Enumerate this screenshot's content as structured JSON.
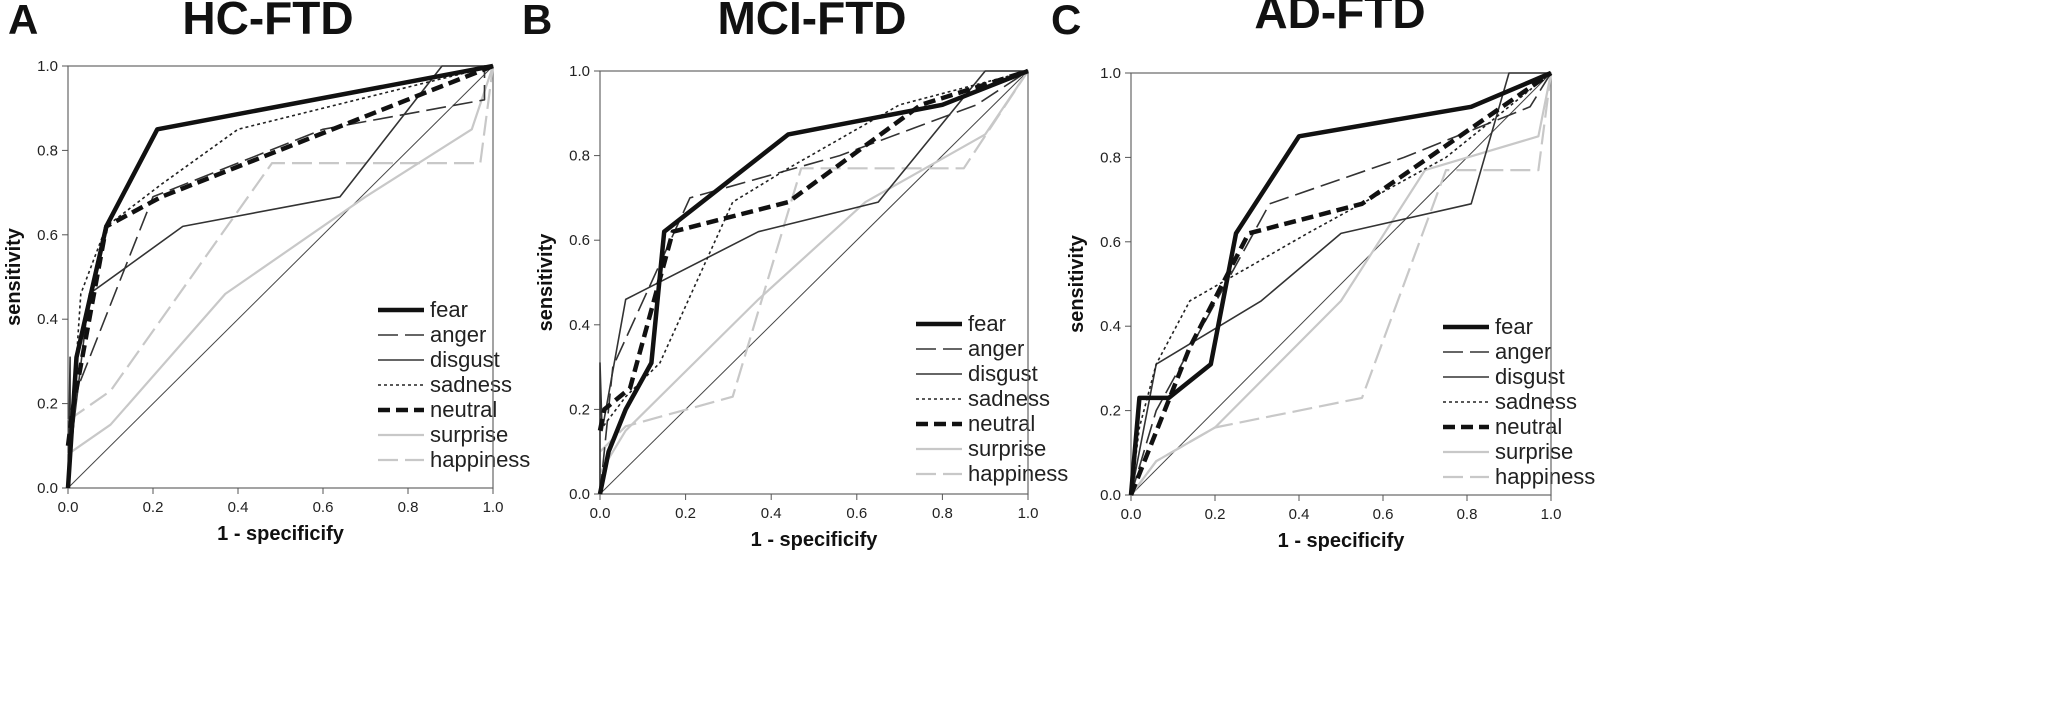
{
  "figure": {
    "series_styles": {
      "fear": {
        "color": "#111111",
        "dash": "solid",
        "weight": "heavy"
      },
      "anger": {
        "color": "#333333",
        "dash": "long-dash",
        "weight": "thin"
      },
      "disgust": {
        "color": "#333333",
        "dash": "solid",
        "weight": "thin"
      },
      "sadness": {
        "color": "#222222",
        "dash": "dotted",
        "weight": "thin"
      },
      "neutral": {
        "color": "#111111",
        "dash": "dash",
        "weight": "heavy"
      },
      "surprise": {
        "color": "#c8c8c8",
        "dash": "solid",
        "weight": "medium"
      },
      "happiness": {
        "color": "#c8c8c8",
        "dash": "long-dash",
        "weight": "medium"
      }
    }
  },
  "chart_data": [
    {
      "type": "line",
      "panel_letter": "A",
      "title": "HC-FTD",
      "xlabel": "1 - specificify",
      "ylabel": "sensitivity",
      "xlim": [
        0,
        1
      ],
      "ylim": [
        0,
        1
      ],
      "xticks": [
        "0.0",
        "0.2",
        "0.4",
        "0.6",
        "0.8",
        "1.0"
      ],
      "yticks": [
        "0.0",
        "0.2",
        "0.4",
        "0.6",
        "0.8",
        "1.0"
      ],
      "grid": false,
      "legend_position": "bottom-right",
      "series": [
        {
          "name": "fear",
          "x": [
            0,
            0.02,
            0.09,
            0.21,
            1.0
          ],
          "y": [
            0,
            0.31,
            0.62,
            0.85,
            1.0
          ]
        },
        {
          "name": "anger",
          "x": [
            0,
            0.02,
            0.2,
            0.6,
            0.98,
            0.98,
            1.0
          ],
          "y": [
            0,
            0.23,
            0.69,
            0.85,
            0.92,
            1.0,
            1.0
          ]
        },
        {
          "name": "disgust",
          "x": [
            0,
            0.005,
            0.005,
            0.05,
            0.27,
            0.64,
            0.88,
            1.0
          ],
          "y": [
            0,
            0.31,
            0.08,
            0.46,
            0.62,
            0.69,
            1.0,
            1.0
          ]
        },
        {
          "name": "sadness",
          "x": [
            0,
            0.01,
            0.03,
            0.09,
            0.22,
            0.4,
            1.0
          ],
          "y": [
            0,
            0.16,
            0.46,
            0.62,
            0.72,
            0.85,
            1.0
          ]
        },
        {
          "name": "neutral",
          "x": [
            0,
            0.01,
            0.09,
            0.22,
            1.0
          ],
          "y": [
            0.1,
            0.18,
            0.62,
            0.69,
            1.0
          ]
        },
        {
          "name": "surprise",
          "x": [
            0,
            0.1,
            0.37,
            0.7,
            0.95,
            1.0
          ],
          "y": [
            0.08,
            0.15,
            0.46,
            0.69,
            0.85,
            1.0
          ]
        },
        {
          "name": "happiness",
          "x": [
            0,
            0.1,
            0.48,
            0.97,
            1.0
          ],
          "y": [
            0.16,
            0.23,
            0.77,
            0.77,
            1.0
          ]
        }
      ]
    },
    {
      "type": "line",
      "panel_letter": "B",
      "title": "MCI-FTD",
      "xlabel": "1 - specificify",
      "ylabel": "sensitivity",
      "xlim": [
        0,
        1
      ],
      "ylim": [
        0,
        1
      ],
      "xticks": [
        "0.0",
        "0.2",
        "0.4",
        "0.6",
        "0.8",
        "1.0"
      ],
      "yticks": [
        "0.0",
        "0.2",
        "0.4",
        "0.6",
        "0.8",
        "1.0"
      ],
      "grid": false,
      "legend_position": "bottom-right",
      "series": [
        {
          "name": "fear",
          "x": [
            0,
            0.02,
            0.06,
            0.12,
            0.15,
            0.44,
            0.8,
            1.0
          ],
          "y": [
            0,
            0.1,
            0.2,
            0.31,
            0.62,
            0.85,
            0.92,
            1.0
          ]
        },
        {
          "name": "anger",
          "x": [
            0,
            0.03,
            0.21,
            0.56,
            0.88,
            1.0
          ],
          "y": [
            0,
            0.3,
            0.7,
            0.8,
            0.92,
            1.0
          ]
        },
        {
          "name": "disgust",
          "x": [
            0,
            0,
            0.005,
            0.06,
            0.37,
            0.65,
            0.9,
            1.0
          ],
          "y": [
            0,
            0.31,
            0.15,
            0.46,
            0.62,
            0.69,
            1.0,
            1.0
          ]
        },
        {
          "name": "sadness",
          "x": [
            0,
            0.06,
            0.14,
            0.31,
            0.44,
            0.7,
            1.0
          ],
          "y": [
            0.15,
            0.23,
            0.31,
            0.69,
            0.77,
            0.92,
            1.0
          ]
        },
        {
          "name": "neutral",
          "x": [
            0,
            0.01,
            0.07,
            0.17,
            0.44,
            0.75,
            1.0
          ],
          "y": [
            0.15,
            0.2,
            0.25,
            0.62,
            0.69,
            0.92,
            1.0
          ]
        },
        {
          "name": "surprise",
          "x": [
            0,
            0.06,
            0.37,
            0.62,
            0.9,
            1.0
          ],
          "y": [
            0.05,
            0.15,
            0.46,
            0.69,
            0.85,
            1.0
          ]
        },
        {
          "name": "happiness",
          "x": [
            0,
            0.06,
            0.31,
            0.47,
            0.85,
            1.0
          ],
          "y": [
            0.1,
            0.16,
            0.23,
            0.77,
            0.77,
            1.0
          ]
        }
      ]
    },
    {
      "type": "line",
      "panel_letter": "C",
      "title": "AD-FTD",
      "xlabel": "1 - specificify",
      "ylabel": "sensitivity",
      "xlim": [
        0,
        1
      ],
      "ylim": [
        0,
        1
      ],
      "xticks": [
        "0.0",
        "0.2",
        "0.4",
        "0.6",
        "0.8",
        "1.0"
      ],
      "yticks": [
        "0.0",
        "0.2",
        "0.4",
        "0.6",
        "0.8",
        "1.0"
      ],
      "grid": false,
      "legend_position": "bottom-right",
      "series": [
        {
          "name": "fear",
          "x": [
            0,
            0.02,
            0.09,
            0.19,
            0.25,
            0.4,
            0.81,
            1.0
          ],
          "y": [
            0,
            0.23,
            0.23,
            0.31,
            0.62,
            0.85,
            0.92,
            1.0
          ]
        },
        {
          "name": "anger",
          "x": [
            0,
            0.06,
            0.33,
            0.65,
            0.95,
            1.0
          ],
          "y": [
            0,
            0.2,
            0.69,
            0.8,
            0.92,
            1.0
          ]
        },
        {
          "name": "disgust",
          "x": [
            0,
            0.06,
            0.31,
            0.5,
            0.81,
            0.9,
            1.0
          ],
          "y": [
            0,
            0.31,
            0.46,
            0.62,
            0.69,
            1.0,
            1.0
          ]
        },
        {
          "name": "sadness",
          "x": [
            0,
            0.02,
            0.06,
            0.14,
            0.42,
            0.75,
            1.0
          ],
          "y": [
            0,
            0.16,
            0.31,
            0.46,
            0.62,
            0.8,
            1.0
          ]
        },
        {
          "name": "neutral",
          "x": [
            0,
            0.06,
            0.14,
            0.28,
            0.55,
            1.0
          ],
          "y": [
            0,
            0.15,
            0.35,
            0.62,
            0.69,
            1.0
          ]
        },
        {
          "name": "surprise",
          "x": [
            0,
            0.06,
            0.2,
            0.5,
            0.7,
            0.97,
            1.0
          ],
          "y": [
            0,
            0.08,
            0.16,
            0.46,
            0.77,
            0.85,
            1.0
          ]
        },
        {
          "name": "happiness",
          "x": [
            0,
            0.06,
            0.2,
            0.55,
            0.75,
            0.97,
            1.0
          ],
          "y": [
            0,
            0.08,
            0.16,
            0.23,
            0.77,
            0.77,
            1.0
          ]
        }
      ]
    }
  ]
}
